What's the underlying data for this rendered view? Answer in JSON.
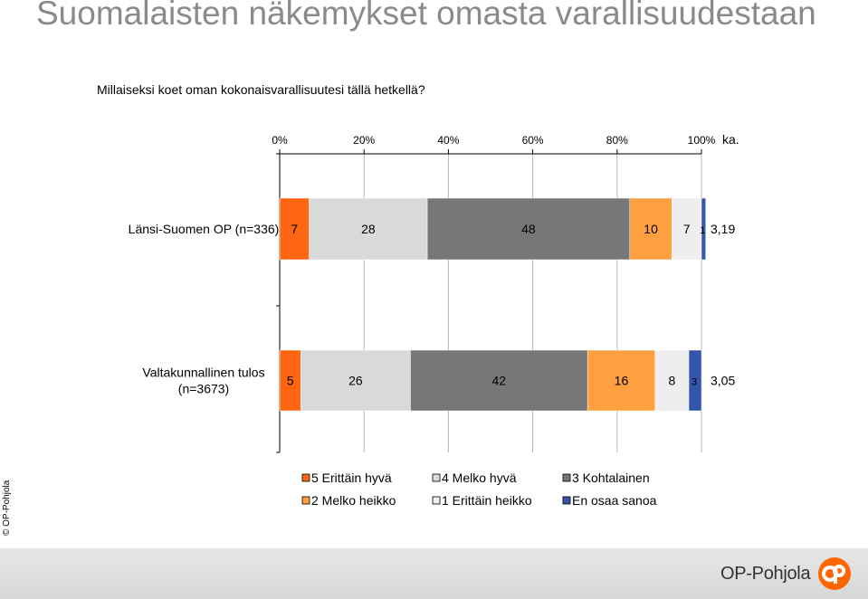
{
  "title": "Suomalaisten näkemykset omasta varallisuudestaan",
  "question": "Millaiseksi koet oman kokonaisvarallisuutesi tällä hetkellä?",
  "copyright": "© OP-Pohjola",
  "brand": "OP-Pohjola",
  "colors": {
    "5 Erittäin hyvä": "#ff6611",
    "4 Melko hyvä": "#d9d9d9",
    "3 Kohtalainen": "#777777",
    "2 Melko heikko": "#ffa040",
    "1 Erittäin heikko": "#eeeeee",
    "En osaa sanoa": "#3355aa",
    "footer": "#dedede",
    "logo": "#ff6600",
    "title": "#8a8a8a"
  },
  "chart_data": {
    "type": "bar",
    "orientation": "horizontal",
    "stacked": true,
    "xlim": [
      0,
      100
    ],
    "x_ticks": [
      "0%",
      "20%",
      "40%",
      "60%",
      "80%",
      "100%"
    ],
    "avg_label": "ka.",
    "categories": [
      "Länsi-Suomen OP (n=336)",
      "Valtakunnallinen tulos (n=3673)"
    ],
    "category_lines": [
      [
        "Länsi-Suomen OP (n=336)"
      ],
      [
        "Valtakunnallinen tulos",
        "(n=3673)"
      ]
    ],
    "averages": [
      "3,19",
      "3,05"
    ],
    "series": [
      {
        "name": "5 Erittäin hyvä",
        "values": [
          7,
          5
        ]
      },
      {
        "name": "4 Melko hyvä",
        "values": [
          28,
          26
        ]
      },
      {
        "name": "3 Kohtalainen",
        "values": [
          48,
          42
        ]
      },
      {
        "name": "2 Melko heikko",
        "values": [
          10,
          16
        ]
      },
      {
        "name": "1 Erittäin heikko",
        "values": [
          7,
          8
        ]
      },
      {
        "name": "En osaa sanoa",
        "values": [
          1,
          3
        ]
      }
    ],
    "legend": "bottom",
    "grid": true
  }
}
